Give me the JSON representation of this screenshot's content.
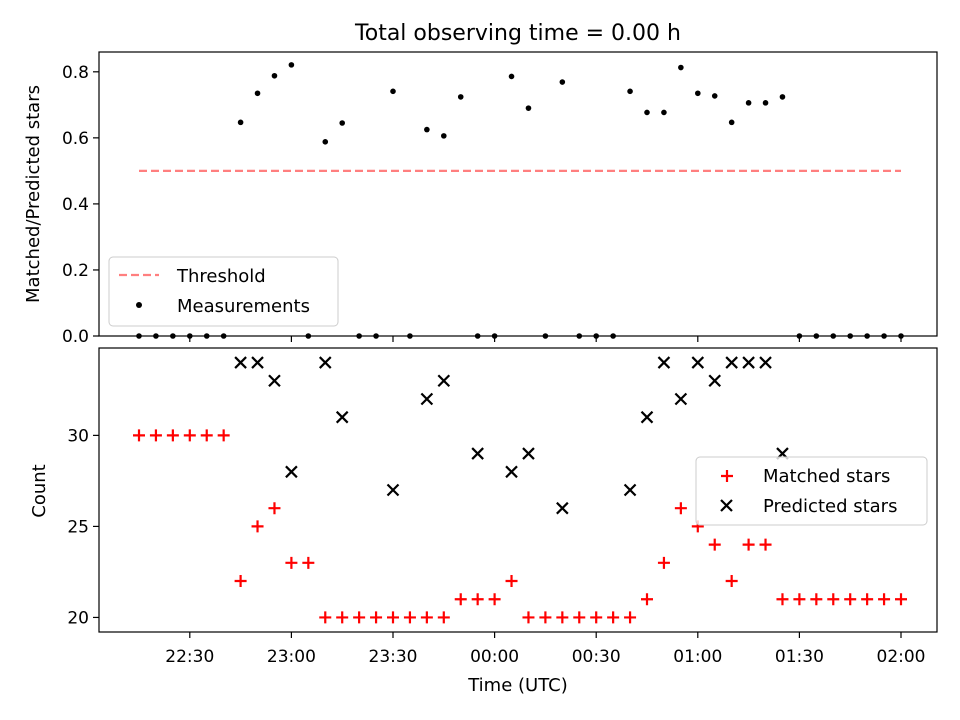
{
  "title": "Total observing time = 0.00 h",
  "xlabel": "Time (UTC)",
  "x_ticks": [
    "22:30",
    "23:00",
    "23:30",
    "00:00",
    "00:30",
    "01:00",
    "01:30",
    "02:00"
  ],
  "colors": {
    "threshold": "#ff7f7f",
    "matched": "#ff0000",
    "predicted": "#000000",
    "measurements": "#000000"
  },
  "chart_data": [
    {
      "type": "scatter",
      "ylabel": "Matched/Predicted stars",
      "ylim": [
        0,
        0.86
      ],
      "yticks": [
        "0.0",
        "0.2",
        "0.4",
        "0.6",
        "0.8"
      ],
      "legend_position": "lower-left",
      "threshold": {
        "name": "Threshold",
        "value": 0.5,
        "x_range": [
          "22:15",
          "02:00"
        ]
      },
      "series": [
        {
          "name": "Measurements",
          "x": [
            "22:15",
            "22:20",
            "22:25",
            "22:30",
            "22:35",
            "22:40",
            "22:45",
            "22:50",
            "22:55",
            "23:00",
            "23:05",
            "23:10",
            "23:15",
            "23:20",
            "23:25",
            "23:30",
            "23:35",
            "23:40",
            "23:45",
            "23:50",
            "23:55",
            "00:00",
            "00:05",
            "00:10",
            "00:15",
            "00:20",
            "00:25",
            "00:30",
            "00:35",
            "00:40",
            "00:45",
            "00:50",
            "00:55",
            "01:00",
            "01:05",
            "01:10",
            "01:15",
            "01:20",
            "01:25",
            "01:30",
            "01:35",
            "01:40",
            "01:45",
            "01:50",
            "01:55",
            "02:00"
          ],
          "values": [
            0,
            0,
            0,
            0,
            0,
            0,
            0.647,
            0.735,
            0.788,
            0.821,
            0,
            0.588,
            0.645,
            0,
            0,
            0.741,
            0,
            0.625,
            0.606,
            0.724,
            0,
            0,
            0.786,
            0.69,
            0,
            0.769,
            0,
            0,
            0,
            0.741,
            0.677,
            0.677,
            0.813,
            0.735,
            0.727,
            0.647,
            0.706,
            0.706,
            0.724,
            0,
            0,
            0,
            0,
            0,
            0,
            0
          ]
        }
      ]
    },
    {
      "type": "scatter",
      "ylabel": "Count",
      "ylim": [
        19.2,
        34.8
      ],
      "yticks": [
        "20",
        "25",
        "30"
      ],
      "legend_position": "center-right",
      "series": [
        {
          "name": "Matched stars",
          "x": [
            "22:15",
            "22:20",
            "22:25",
            "22:30",
            "22:35",
            "22:40",
            "22:45",
            "22:50",
            "22:55",
            "23:00",
            "23:05",
            "23:10",
            "23:15",
            "23:20",
            "23:25",
            "23:30",
            "23:35",
            "23:40",
            "23:45",
            "23:50",
            "23:55",
            "00:00",
            "00:05",
            "00:10",
            "00:15",
            "00:20",
            "00:25",
            "00:30",
            "00:35",
            "00:40",
            "00:45",
            "00:50",
            "00:55",
            "01:00",
            "01:05",
            "01:10",
            "01:15",
            "01:20",
            "01:25",
            "01:30",
            "01:35",
            "01:40",
            "01:45",
            "01:50",
            "01:55",
            "02:00"
          ],
          "values": [
            30,
            30,
            30,
            30,
            30,
            30,
            22,
            25,
            26,
            23,
            23,
            20,
            20,
            20,
            20,
            20,
            20,
            20,
            20,
            21,
            21,
            21,
            22,
            20,
            20,
            20,
            20,
            20,
            20,
            20,
            21,
            23,
            26,
            25,
            24,
            22,
            24,
            24,
            21,
            21,
            21,
            21,
            21,
            21,
            21,
            21
          ]
        },
        {
          "name": "Predicted stars",
          "x": [
            "22:45",
            "22:50",
            "22:55",
            "23:00",
            "23:10",
            "23:15",
            "23:30",
            "23:40",
            "23:45",
            "23:55",
            "00:05",
            "00:10",
            "00:20",
            "00:40",
            "00:45",
            "00:50",
            "00:55",
            "01:00",
            "01:05",
            "01:10",
            "01:15",
            "01:20",
            "01:25"
          ],
          "values": [
            34,
            34,
            33,
            28,
            34,
            31,
            27,
            32,
            33,
            29,
            28,
            29,
            26,
            27,
            31,
            34,
            32,
            34,
            33,
            34,
            34,
            34,
            29
          ]
        }
      ]
    }
  ]
}
